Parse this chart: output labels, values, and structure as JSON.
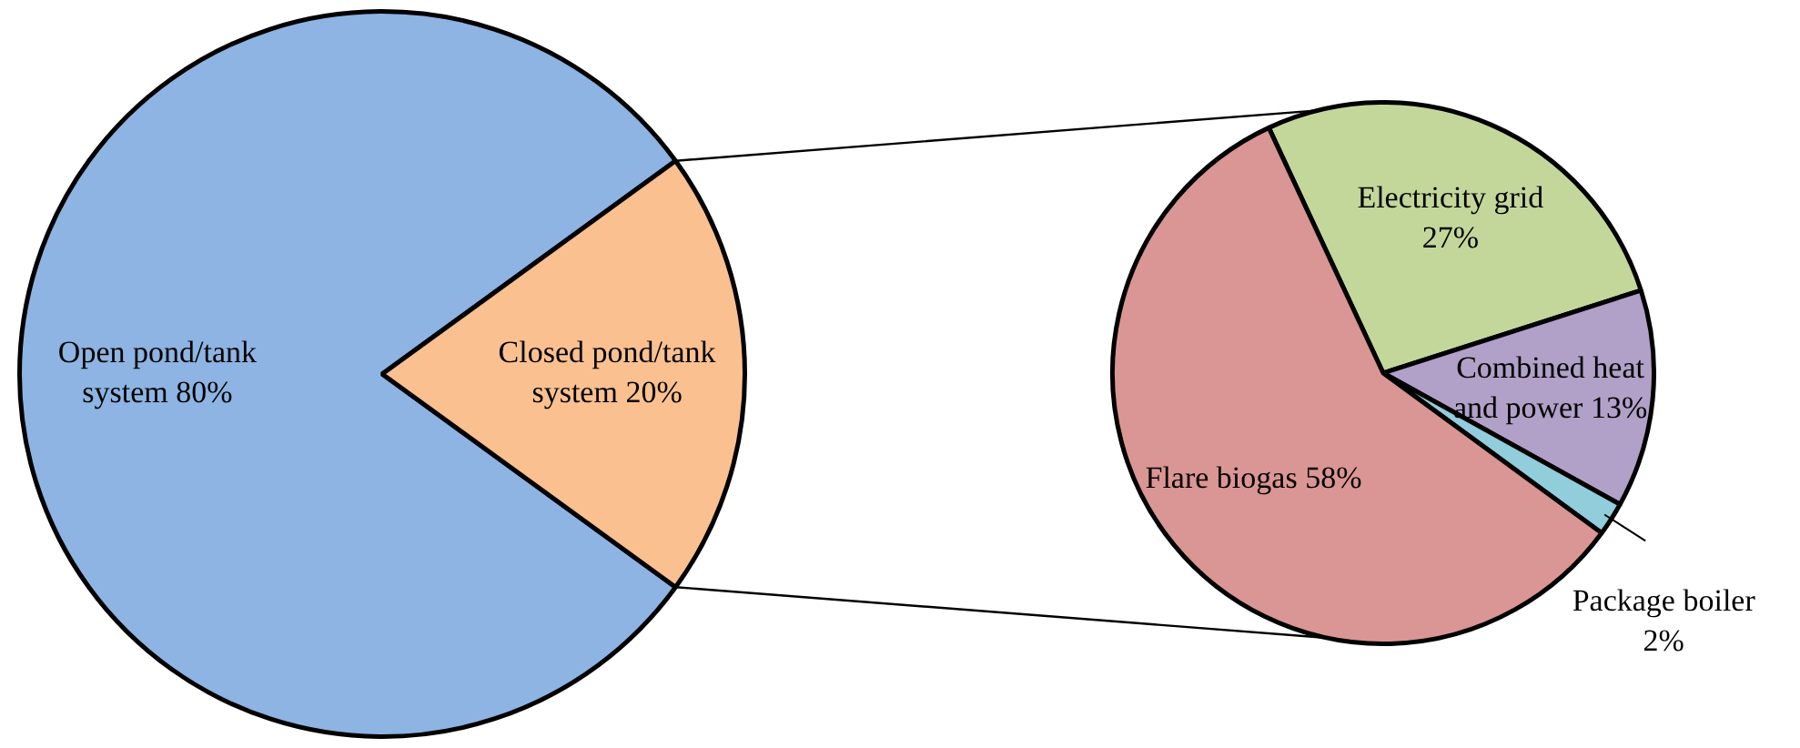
{
  "chart_data": [
    {
      "type": "pie",
      "categories": [
        "Open pond/tank system",
        "Closed pond/tank system"
      ],
      "values": [
        80,
        20
      ],
      "colors": [
        "#8db4e2",
        "#fac090"
      ],
      "value_labels": [
        "80%",
        "20%"
      ]
    },
    {
      "type": "pie",
      "categories": [
        "Electricity grid",
        "Combined heat and power",
        "Package boiler",
        "Flare biogas"
      ],
      "values": [
        27,
        13,
        2,
        58
      ],
      "colors": [
        "#c4d79b",
        "#b1a0c7",
        "#92cddc",
        "#da9694"
      ],
      "value_labels": [
        "27%",
        "13%",
        "2%",
        "58%"
      ]
    }
  ]
}
